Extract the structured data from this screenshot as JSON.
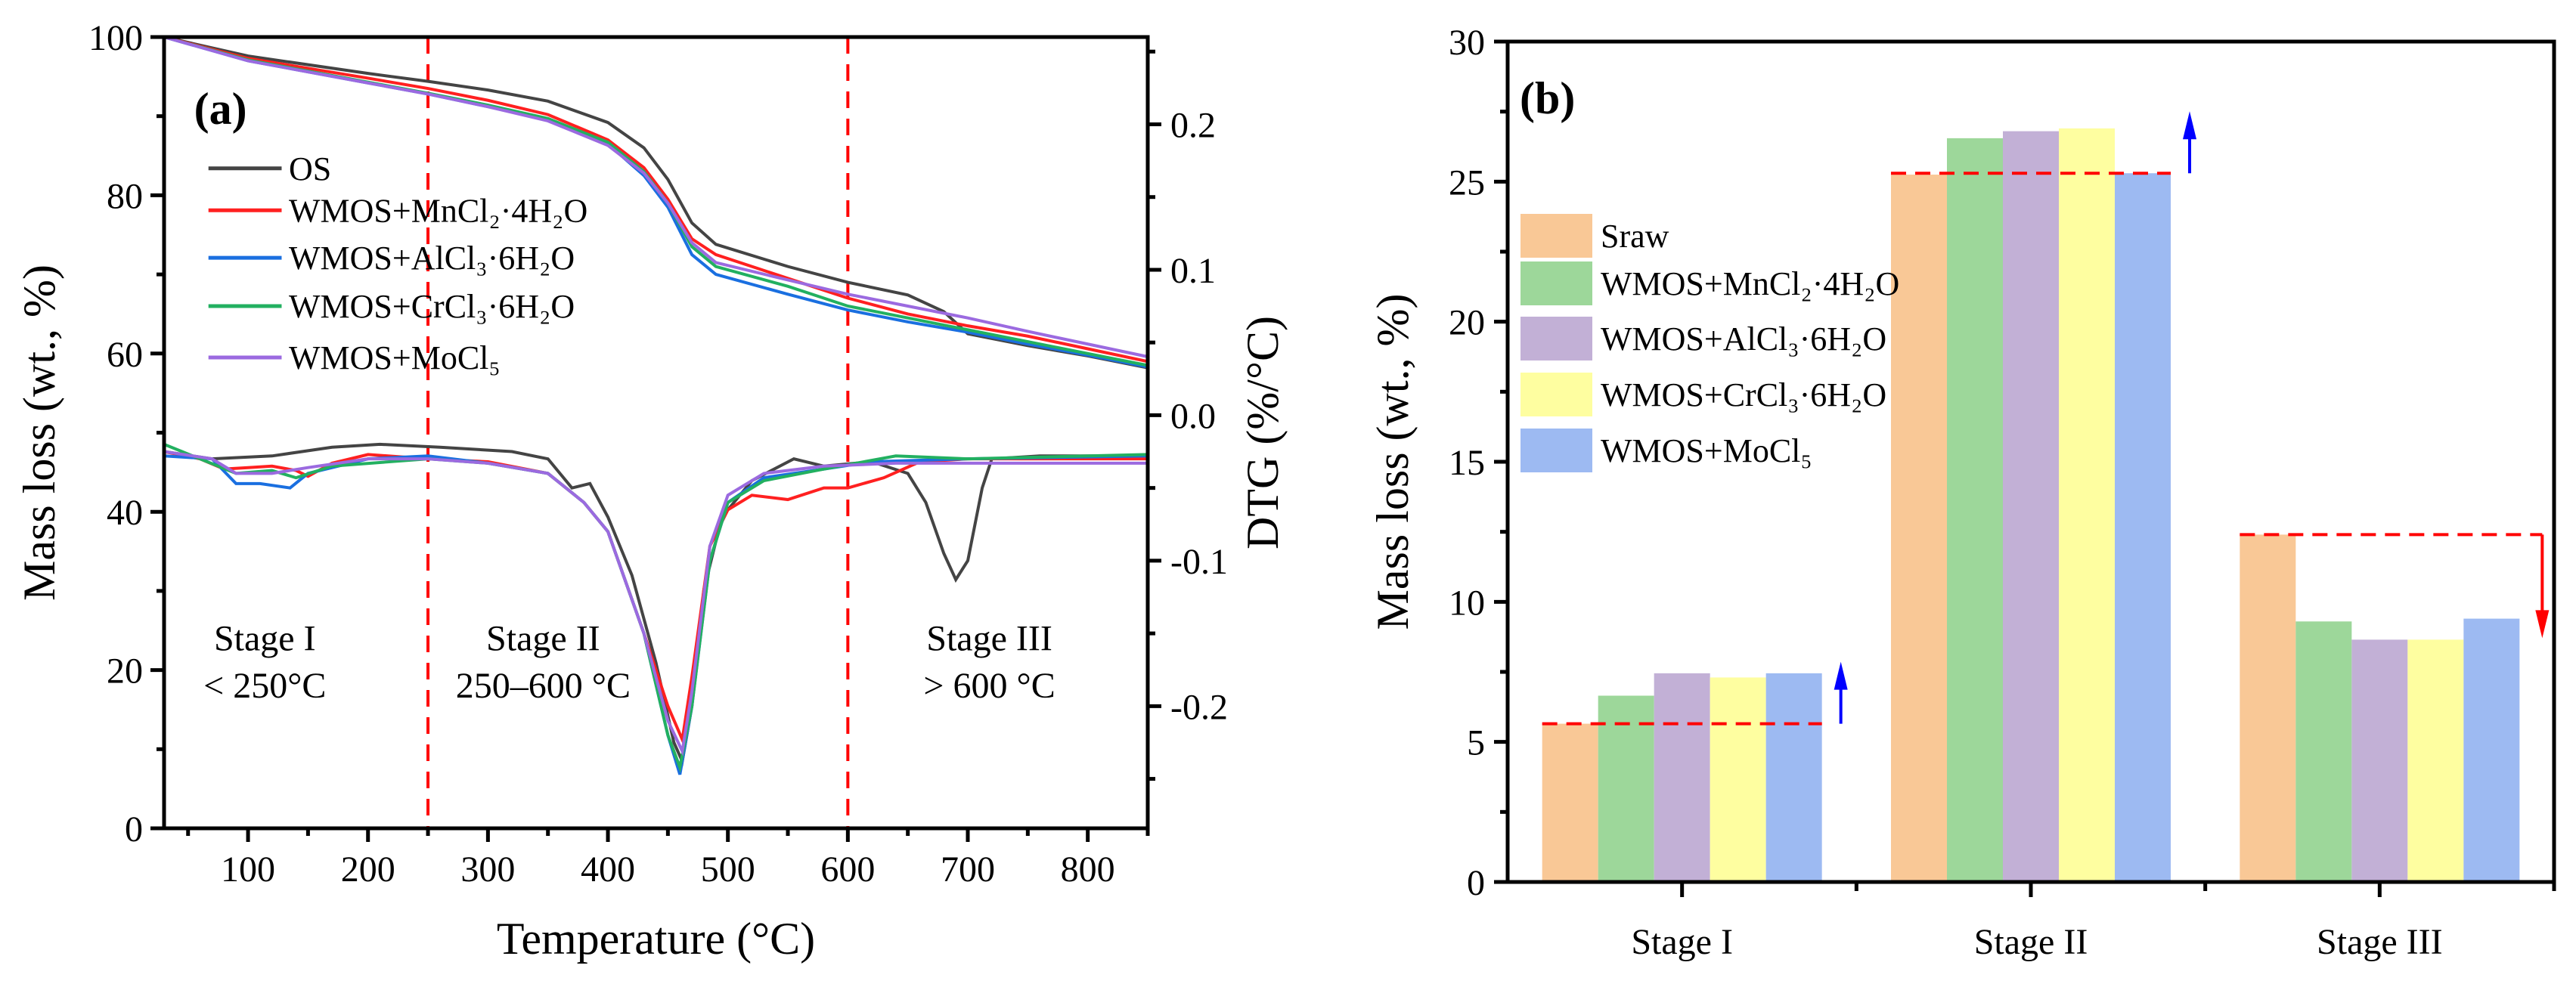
{
  "chart_data": [
    {
      "type": "line",
      "panel_label": "(a)",
      "xlabel": "Temperature (°C)",
      "ylabel": "Mass loss (wt., %)",
      "y2label": "DTG (%/°C)",
      "xlim": [
        30,
        850
      ],
      "ylim": [
        0,
        100
      ],
      "y2lim": [
        -0.284,
        0.26
      ],
      "xticks": [
        100,
        200,
        300,
        400,
        500,
        600,
        700,
        800
      ],
      "yticks": [
        0,
        20,
        40,
        60,
        80,
        100
      ],
      "y2ticks": [
        "0.2",
        "0.1",
        "0.0",
        "-0.1",
        "-0.2"
      ],
      "y2tick_values": [
        0.2,
        0.1,
        0.0,
        -0.1,
        -0.2
      ],
      "vlines": [
        250,
        600
      ],
      "vline_color": "#ff0000",
      "annotations": [
        {
          "line1": "Stage I",
          "line2": "< 250°C",
          "x": 114
        },
        {
          "line1": "Stage II",
          "line2": "250–600 °C",
          "x": 346
        },
        {
          "line1": "Stage III",
          "line2": "> 600 °C",
          "x": 718
        }
      ],
      "series": [
        {
          "name": "OS",
          "color": "#444444",
          "tg": [
            [
              30,
              100
            ],
            [
              100,
              97.6
            ],
            [
              200,
              95.4
            ],
            [
              250,
              94.4
            ],
            [
              300,
              93.3
            ],
            [
              350,
              91.9
            ],
            [
              400,
              89.2
            ],
            [
              430,
              86
            ],
            [
              450,
              82
            ],
            [
              470,
              76.5
            ],
            [
              490,
              73.8
            ],
            [
              550,
              71
            ],
            [
              600,
              69
            ],
            [
              650,
              67.4
            ],
            [
              680,
              65.3
            ],
            [
              700,
              62.5
            ],
            [
              750,
              61
            ],
            [
              800,
              59.7
            ],
            [
              850,
              58.2
            ]
          ],
          "dtg": [
            [
              30,
              -0.025
            ],
            [
              70,
              -0.03
            ],
            [
              120,
              -0.028
            ],
            [
              170,
              -0.022
            ],
            [
              210,
              -0.02
            ],
            [
              260,
              -0.022
            ],
            [
              320,
              -0.025
            ],
            [
              350,
              -0.03
            ],
            [
              370,
              -0.05
            ],
            [
              385,
              -0.047
            ],
            [
              400,
              -0.07
            ],
            [
              420,
              -0.11
            ],
            [
              440,
              -0.17
            ],
            [
              455,
              -0.225
            ],
            [
              462,
              -0.238
            ],
            [
              470,
              -0.2
            ],
            [
              480,
              -0.12
            ],
            [
              495,
              -0.07
            ],
            [
              520,
              -0.045
            ],
            [
              555,
              -0.03
            ],
            [
              580,
              -0.035
            ],
            [
              620,
              -0.032
            ],
            [
              650,
              -0.04
            ],
            [
              665,
              -0.06
            ],
            [
              680,
              -0.095
            ],
            [
              690,
              -0.113
            ],
            [
              700,
              -0.1
            ],
            [
              712,
              -0.05
            ],
            [
              720,
              -0.03
            ],
            [
              760,
              -0.028
            ],
            [
              850,
              -0.028
            ]
          ]
        },
        {
          "name": "WMOS+MnCl₂·4H₂O",
          "color": "#ff2020",
          "tg": [
            [
              30,
              100
            ],
            [
              100,
              97.3
            ],
            [
              200,
              94.8
            ],
            [
              250,
              93.5
            ],
            [
              300,
              92
            ],
            [
              350,
              90.2
            ],
            [
              400,
              87
            ],
            [
              430,
              83.5
            ],
            [
              450,
              79.5
            ],
            [
              470,
              74.5
            ],
            [
              490,
              72.5
            ],
            [
              550,
              69.5
            ],
            [
              600,
              67
            ],
            [
              650,
              65
            ],
            [
              700,
              63.5
            ],
            [
              750,
              62.2
            ],
            [
              800,
              60.6
            ],
            [
              850,
              59
            ]
          ],
          "dtg": [
            [
              30,
              -0.025
            ],
            [
              60,
              -0.03
            ],
            [
              80,
              -0.037
            ],
            [
              100,
              -0.036
            ],
            [
              120,
              -0.035
            ],
            [
              140,
              -0.038
            ],
            [
              150,
              -0.042
            ],
            [
              170,
              -0.033
            ],
            [
              200,
              -0.027
            ],
            [
              250,
              -0.03
            ],
            [
              300,
              -0.032
            ],
            [
              350,
              -0.04
            ],
            [
              380,
              -0.06
            ],
            [
              400,
              -0.08
            ],
            [
              430,
              -0.15
            ],
            [
              450,
              -0.2
            ],
            [
              462,
              -0.223
            ],
            [
              470,
              -0.18
            ],
            [
              485,
              -0.09
            ],
            [
              500,
              -0.065
            ],
            [
              520,
              -0.055
            ],
            [
              550,
              -0.058
            ],
            [
              580,
              -0.05
            ],
            [
              600,
              -0.05
            ],
            [
              630,
              -0.043
            ],
            [
              660,
              -0.032
            ],
            [
              700,
              -0.03
            ],
            [
              850,
              -0.03
            ]
          ]
        },
        {
          "name": "WMOS+AlCl₃·6H₂O",
          "color": "#1a6fe0",
          "tg": [
            [
              30,
              100
            ],
            [
              100,
              97
            ],
            [
              200,
              94.2
            ],
            [
              250,
              92.8
            ],
            [
              300,
              91.2
            ],
            [
              350,
              89.5
            ],
            [
              400,
              86.5
            ],
            [
              430,
              82.5
            ],
            [
              450,
              78.5
            ],
            [
              470,
              72.5
            ],
            [
              490,
              70
            ],
            [
              550,
              67.5
            ],
            [
              600,
              65.5
            ],
            [
              650,
              64
            ],
            [
              700,
              62.7
            ],
            [
              750,
              61.2
            ],
            [
              800,
              59.8
            ],
            [
              850,
              58.3
            ]
          ],
          "dtg": [
            [
              30,
              -0.028
            ],
            [
              70,
              -0.03
            ],
            [
              90,
              -0.047
            ],
            [
              110,
              -0.047
            ],
            [
              135,
              -0.05
            ],
            [
              150,
              -0.04
            ],
            [
              200,
              -0.03
            ],
            [
              250,
              -0.028
            ],
            [
              300,
              -0.033
            ],
            [
              350,
              -0.04
            ],
            [
              380,
              -0.06
            ],
            [
              400,
              -0.08
            ],
            [
              430,
              -0.15
            ],
            [
              450,
              -0.22
            ],
            [
              460,
              -0.247
            ],
            [
              470,
              -0.2
            ],
            [
              485,
              -0.1
            ],
            [
              500,
              -0.06
            ],
            [
              530,
              -0.043
            ],
            [
              580,
              -0.037
            ],
            [
              620,
              -0.032
            ],
            [
              700,
              -0.03
            ],
            [
              850,
              -0.028
            ]
          ]
        },
        {
          "name": "WMOS+CrCl₃·6H₂O",
          "color": "#22b060",
          "tg": [
            [
              30,
              100
            ],
            [
              100,
              97.1
            ],
            [
              200,
              94.3
            ],
            [
              250,
              92.9
            ],
            [
              300,
              91.4
            ],
            [
              350,
              89.7
            ],
            [
              400,
              86.7
            ],
            [
              430,
              83
            ],
            [
              450,
              79
            ],
            [
              470,
              73.5
            ],
            [
              490,
              71
            ],
            [
              550,
              68.5
            ],
            [
              600,
              66
            ],
            [
              650,
              64.5
            ],
            [
              700,
              63
            ],
            [
              750,
              61.5
            ],
            [
              800,
              60
            ],
            [
              850,
              58.5
            ]
          ],
          "dtg": [
            [
              30,
              -0.02
            ],
            [
              60,
              -0.03
            ],
            [
              90,
              -0.04
            ],
            [
              120,
              -0.038
            ],
            [
              140,
              -0.043
            ],
            [
              170,
              -0.035
            ],
            [
              250,
              -0.03
            ],
            [
              300,
              -0.033
            ],
            [
              350,
              -0.04
            ],
            [
              380,
              -0.06
            ],
            [
              400,
              -0.08
            ],
            [
              430,
              -0.15
            ],
            [
              450,
              -0.22
            ],
            [
              460,
              -0.242
            ],
            [
              470,
              -0.2
            ],
            [
              485,
              -0.1
            ],
            [
              500,
              -0.06
            ],
            [
              530,
              -0.045
            ],
            [
              580,
              -0.037
            ],
            [
              640,
              -0.028
            ],
            [
              700,
              -0.03
            ],
            [
              850,
              -0.027
            ]
          ]
        },
        {
          "name": "WMOS+MoCl₅",
          "color": "#9b6ae0",
          "tg": [
            [
              30,
              100
            ],
            [
              100,
              97
            ],
            [
              200,
              94.2
            ],
            [
              250,
              92.8
            ],
            [
              300,
              91.2
            ],
            [
              350,
              89.4
            ],
            [
              400,
              86.3
            ],
            [
              430,
              82.8
            ],
            [
              450,
              79
            ],
            [
              470,
              74
            ],
            [
              490,
              71.5
            ],
            [
              550,
              69.3
            ],
            [
              600,
              67.5
            ],
            [
              650,
              66
            ],
            [
              700,
              64.5
            ],
            [
              750,
              62.8
            ],
            [
              800,
              61.2
            ],
            [
              850,
              59.6
            ]
          ],
          "dtg": [
            [
              30,
              -0.025
            ],
            [
              70,
              -0.03
            ],
            [
              90,
              -0.04
            ],
            [
              120,
              -0.04
            ],
            [
              150,
              -0.036
            ],
            [
              200,
              -0.03
            ],
            [
              250,
              -0.03
            ],
            [
              300,
              -0.033
            ],
            [
              350,
              -0.04
            ],
            [
              380,
              -0.06
            ],
            [
              400,
              -0.08
            ],
            [
              430,
              -0.15
            ],
            [
              450,
              -0.21
            ],
            [
              462,
              -0.231
            ],
            [
              470,
              -0.19
            ],
            [
              485,
              -0.09
            ],
            [
              500,
              -0.055
            ],
            [
              530,
              -0.04
            ],
            [
              580,
              -0.035
            ],
            [
              640,
              -0.033
            ],
            [
              700,
              -0.033
            ],
            [
              850,
              -0.033
            ]
          ]
        }
      ]
    },
    {
      "type": "bar",
      "panel_label": "(b)",
      "xlabel": "",
      "ylabel": "Mass loss (wt., %)",
      "ylim": [
        0,
        30
      ],
      "yticks": [
        0,
        5,
        10,
        15,
        20,
        25,
        30
      ],
      "categories": [
        "Stage I",
        "Stage II",
        "Stage III"
      ],
      "series": [
        {
          "name": "Sraw",
          "color": "#f9c896",
          "values": [
            5.65,
            25.25,
            12.4
          ]
        },
        {
          "name": "WMOS+MnCl₂·4H₂O",
          "color": "#9dd79a",
          "values": [
            6.65,
            26.55,
            9.3
          ]
        },
        {
          "name": "WMOS+AlCl₃·6H₂O",
          "color": "#c2b0d6",
          "values": [
            7.45,
            26.8,
            8.65
          ]
        },
        {
          "name": "WMOS+CrCl₃·6H₂O",
          "color": "#fefea0",
          "values": [
            7.3,
            26.9,
            8.65
          ]
        },
        {
          "name": "WMOS+MoCl₅",
          "color": "#9dbaf2",
          "values": [
            7.45,
            25.3,
            9.4
          ]
        }
      ],
      "reference_lines": [
        {
          "category": "Stage I",
          "value": 5.65,
          "arrow": "up",
          "arrow_color": "#0000ff"
        },
        {
          "category": "Stage II",
          "value": 25.3,
          "arrow": "up",
          "arrow_color": "#0000ff"
        },
        {
          "category": "Stage III",
          "value": 12.4,
          "arrow": "down",
          "arrow_color": "#ff0000"
        }
      ]
    }
  ]
}
